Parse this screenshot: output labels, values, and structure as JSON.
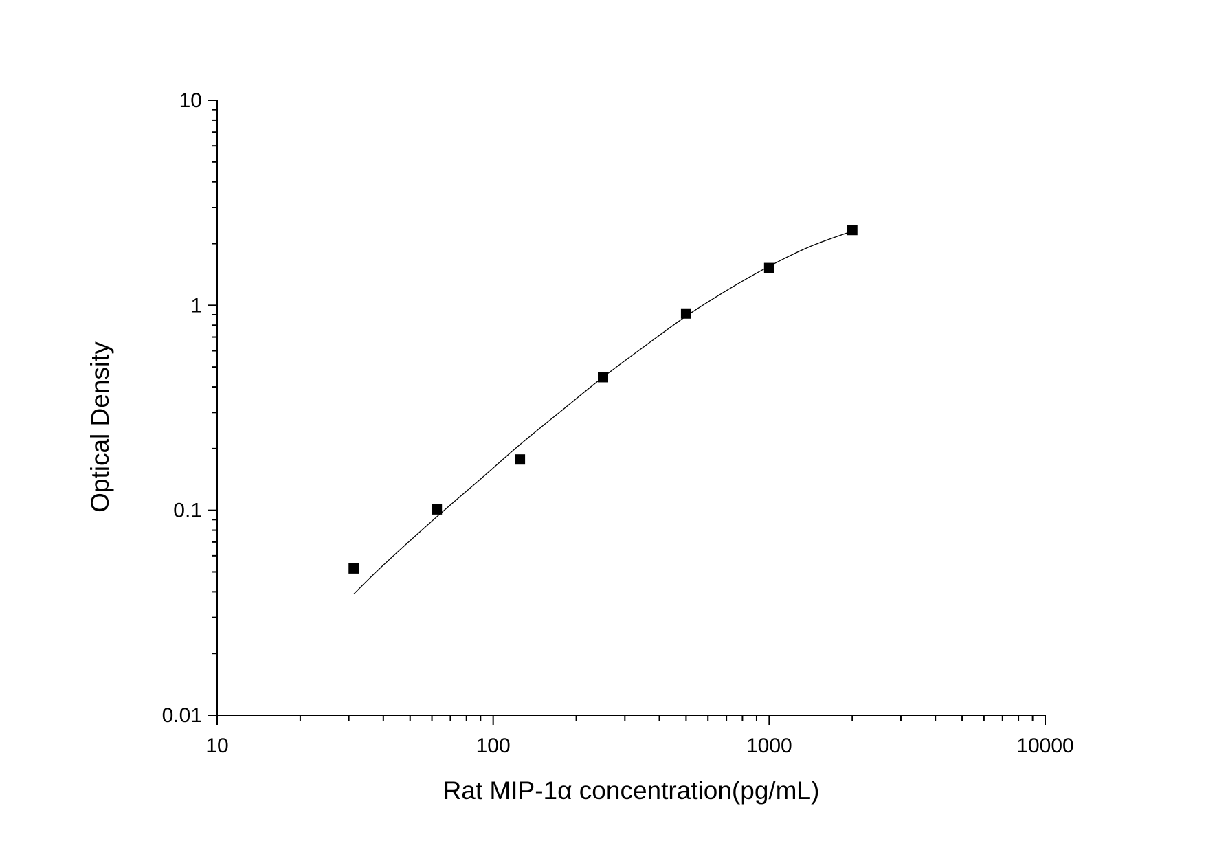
{
  "chart_data": {
    "type": "scatter",
    "xlabel": "Rat MIP-1α  concentration(pg/mL)",
    "ylabel": "Optical Density",
    "x_scale": "log",
    "y_scale": "log",
    "xlim": [
      10,
      10000
    ],
    "ylim": [
      0.01,
      10
    ],
    "x_ticks": [
      "10",
      "100",
      "1000",
      "10000"
    ],
    "y_ticks": [
      "0.01",
      "0.1",
      "1",
      "10"
    ],
    "grid": false,
    "series": [
      {
        "marker": "square",
        "color": "#000000",
        "points": [
          {
            "x": 31.25,
            "y": 0.052
          },
          {
            "x": 62.5,
            "y": 0.101
          },
          {
            "x": 125,
            "y": 0.177
          },
          {
            "x": 250,
            "y": 0.446
          },
          {
            "x": 500,
            "y": 0.912
          },
          {
            "x": 1000,
            "y": 1.52
          },
          {
            "x": 2000,
            "y": 2.33
          }
        ]
      }
    ],
    "fit_curve": {
      "color": "#000000",
      "points": [
        {
          "x": 31.25,
          "y": 0.039
        },
        {
          "x": 40,
          "y": 0.054
        },
        {
          "x": 62.5,
          "y": 0.093
        },
        {
          "x": 90,
          "y": 0.142
        },
        {
          "x": 125,
          "y": 0.209
        },
        {
          "x": 180,
          "y": 0.312
        },
        {
          "x": 250,
          "y": 0.446
        },
        {
          "x": 350,
          "y": 0.625
        },
        {
          "x": 500,
          "y": 0.885
        },
        {
          "x": 700,
          "y": 1.18
        },
        {
          "x": 1000,
          "y": 1.55
        },
        {
          "x": 1400,
          "y": 1.93
        },
        {
          "x": 2000,
          "y": 2.3
        }
      ]
    }
  }
}
